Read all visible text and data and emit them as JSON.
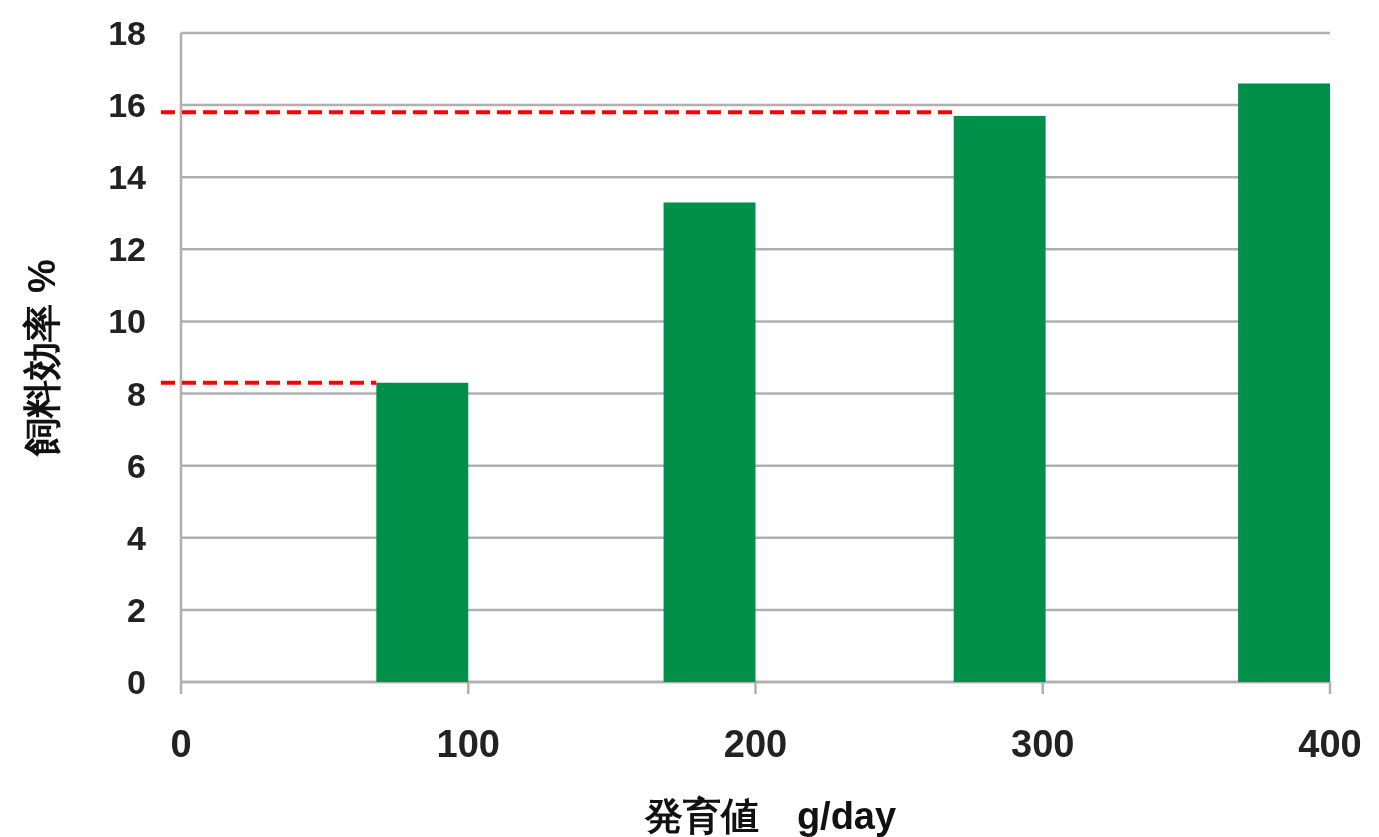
{
  "chart_data": {
    "type": "bar",
    "xlabel": "発育値　g/day",
    "ylabel": "飼料効率 %",
    "x": [
      84,
      184,
      285,
      384
    ],
    "values": [
      8.3,
      13.3,
      15.7,
      16.6
    ],
    "color": "#00904a",
    "xlim": [
      0,
      400
    ],
    "xticks": [
      0,
      100,
      200,
      300,
      400
    ],
    "ylim": [
      0,
      18
    ],
    "yticks": [
      0,
      2,
      4,
      6,
      8,
      10,
      12,
      14,
      16,
      18
    ],
    "grid": "y",
    "ref_lines": [
      {
        "axis": "y",
        "value": 8.3,
        "color": "#ff0000",
        "line_style": "dashed"
      },
      {
        "axis": "y",
        "value": 15.8,
        "color": "#ff0000",
        "line_style": "dashed"
      }
    ]
  }
}
